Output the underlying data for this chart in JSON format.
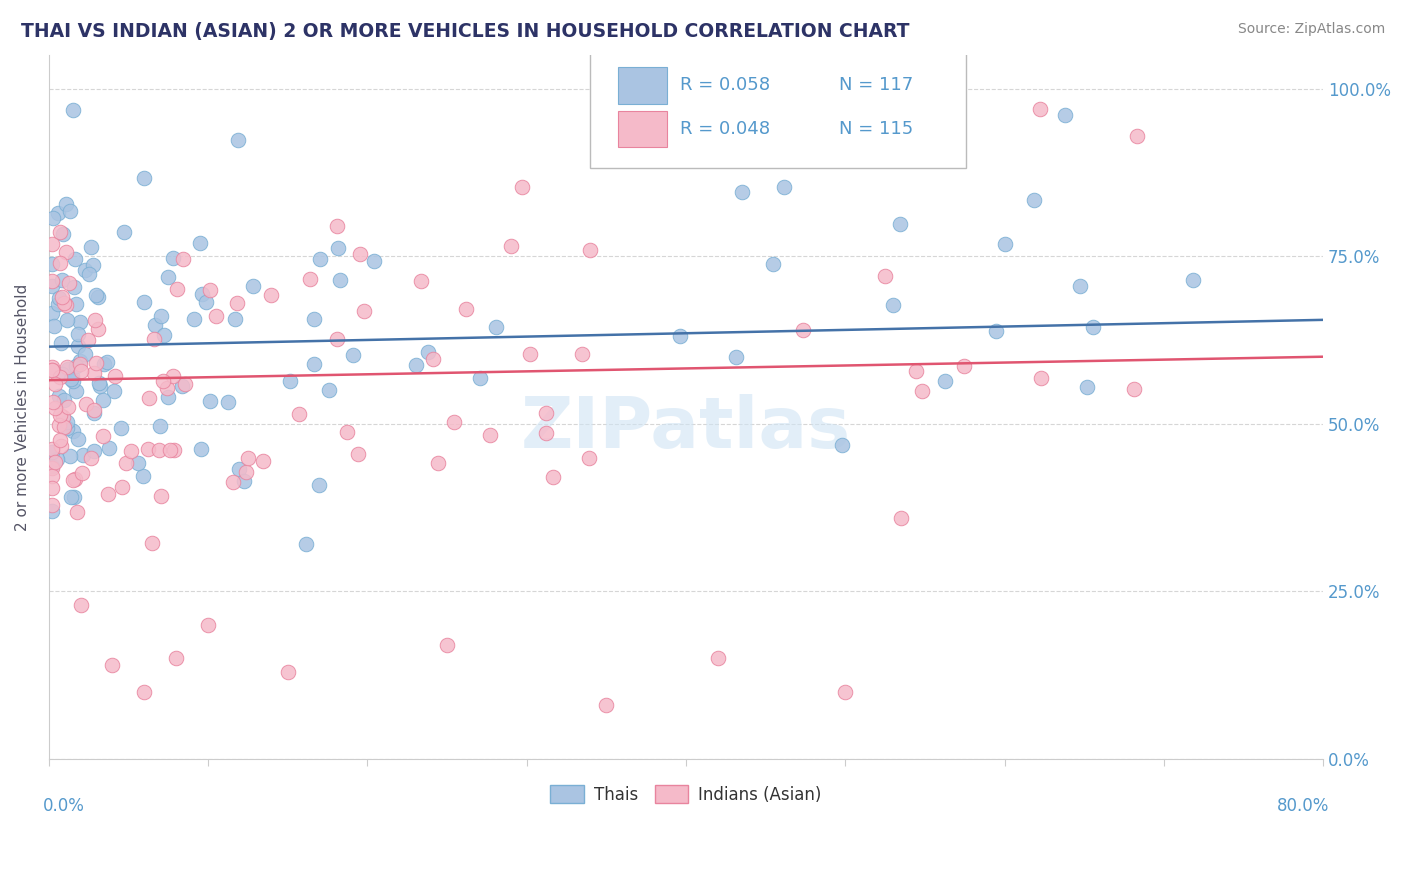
{
  "title": "THAI VS INDIAN (ASIAN) 2 OR MORE VEHICLES IN HOUSEHOLD CORRELATION CHART",
  "source": "Source: ZipAtlas.com",
  "ylabel": "2 or more Vehicles in Household",
  "ylabel_right_labels": [
    "0.0%",
    "25.0%",
    "50.0%",
    "75.0%",
    "100.0%"
  ],
  "ylabel_right_ticks": [
    0.0,
    0.25,
    0.5,
    0.75,
    1.0
  ],
  "xmin": 0.0,
  "xmax": 0.8,
  "ymin": 0.0,
  "ymax": 1.05,
  "legend_r1": "R = 0.058",
  "legend_n1": "N = 117",
  "legend_r2": "R = 0.048",
  "legend_n2": "N = 115",
  "series1_color": "#aac4e2",
  "series1_edge": "#7aafd4",
  "series2_color": "#f5bac9",
  "series2_edge": "#e8849e",
  "line1_color": "#4472a8",
  "line2_color": "#e05570",
  "background_color": "#ffffff",
  "grid_color": "#cccccc",
  "title_color": "#2d3366",
  "label_color": "#5599cc",
  "axis_color": "#cccccc",
  "watermark_color": "#d0e4f4",
  "line1_start_y": 0.615,
  "line1_end_y": 0.655,
  "line2_start_y": 0.565,
  "line2_end_y": 0.6
}
